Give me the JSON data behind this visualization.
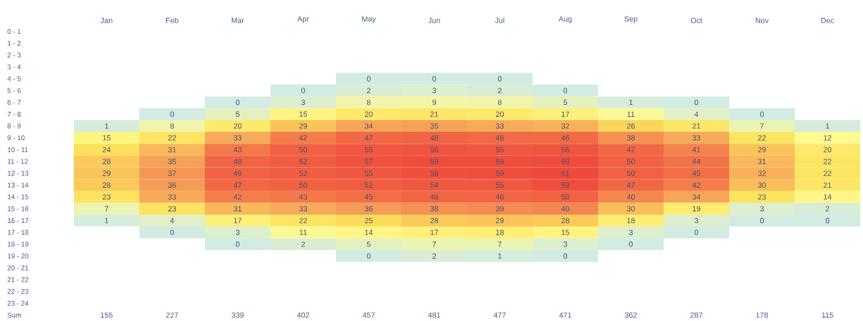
{
  "chart_data": {
    "type": "heatmap",
    "categories": [
      "Jan",
      "Feb",
      "Mar",
      "Apr",
      "May",
      "Jun",
      "Jul",
      "Aug",
      "Sep",
      "Oct",
      "Nov",
      "Dec"
    ],
    "y_categories": [
      "0 - 1",
      "1 - 2",
      "2 - 3",
      "3 - 4",
      "4 - 5",
      "5 - 6",
      "6 - 7",
      "7 - 8",
      "8 - 9",
      "9 - 10",
      "10 - 11",
      "11 - 12",
      "12 - 13",
      "13 - 14",
      "14 - 15",
      "15 - 16",
      "16 - 17",
      "17 - 18",
      "18 - 19",
      "19 - 20",
      "20 - 21",
      "21 - 22",
      "22 - 23",
      "23 - 24",
      "Sum"
    ],
    "cells": [
      [
        null,
        null,
        null,
        null,
        null,
        null,
        null,
        null,
        null,
        null,
        null,
        null
      ],
      [
        null,
        null,
        null,
        null,
        null,
        null,
        null,
        null,
        null,
        null,
        null,
        null
      ],
      [
        null,
        null,
        null,
        null,
        null,
        null,
        null,
        null,
        null,
        null,
        null,
        null
      ],
      [
        null,
        null,
        null,
        null,
        null,
        null,
        null,
        null,
        null,
        null,
        null,
        null
      ],
      [
        null,
        null,
        null,
        null,
        0,
        0,
        0,
        null,
        null,
        null,
        null,
        null
      ],
      [
        null,
        null,
        null,
        0,
        2,
        3,
        2,
        0,
        null,
        null,
        null,
        null
      ],
      [
        null,
        null,
        0,
        3,
        8,
        9,
        8,
        5,
        1,
        0,
        null,
        null
      ],
      [
        null,
        0,
        5,
        15,
        20,
        21,
        20,
        17,
        11,
        4,
        0,
        null
      ],
      [
        1,
        8,
        20,
        29,
        34,
        35,
        33,
        32,
        26,
        21,
        7,
        1
      ],
      [
        15,
        22,
        33,
        42,
        47,
        48,
        46,
        46,
        38,
        33,
        22,
        12
      ],
      [
        24,
        31,
        43,
        50,
        55,
        56,
        55,
        56,
        47,
        41,
        29,
        20
      ],
      [
        28,
        35,
        48,
        52,
        57,
        59,
        59,
        60,
        50,
        44,
        31,
        22
      ],
      [
        29,
        37,
        49,
        52,
        55,
        58,
        59,
        61,
        50,
        45,
        32,
        22
      ],
      [
        28,
        36,
        47,
        50,
        52,
        54,
        55,
        59,
        47,
        42,
        30,
        21
      ],
      [
        23,
        33,
        42,
        43,
        45,
        48,
        48,
        50,
        40,
        34,
        23,
        14
      ],
      [
        7,
        23,
        31,
        33,
        36,
        38,
        39,
        40,
        30,
        19,
        3,
        2
      ],
      [
        1,
        4,
        17,
        22,
        25,
        28,
        29,
        28,
        18,
        3,
        0,
        0
      ],
      [
        null,
        0,
        3,
        11,
        14,
        17,
        18,
        15,
        3,
        0,
        null,
        null
      ],
      [
        null,
        null,
        0,
        2,
        5,
        7,
        7,
        3,
        0,
        null,
        null,
        null
      ],
      [
        null,
        null,
        null,
        null,
        0,
        2,
        1,
        0,
        null,
        null,
        null,
        null
      ],
      [
        null,
        null,
        null,
        null,
        null,
        null,
        null,
        null,
        null,
        null,
        null,
        null
      ],
      [
        null,
        null,
        null,
        null,
        null,
        null,
        null,
        null,
        null,
        null,
        null,
        null
      ],
      [
        null,
        null,
        null,
        null,
        null,
        null,
        null,
        null,
        null,
        null,
        null,
        null
      ],
      [
        null,
        null,
        null,
        null,
        null,
        null,
        null,
        null,
        null,
        null,
        null,
        null
      ],
      [
        null,
        null,
        null,
        null,
        null,
        null,
        null,
        null,
        null,
        null,
        null,
        null
      ]
    ],
    "totals": [
      "155",
      "227",
      "339",
      "402",
      "457",
      "481",
      "477",
      "471",
      "362",
      "287",
      "178",
      "115"
    ],
    "data_labels": true
  }
}
